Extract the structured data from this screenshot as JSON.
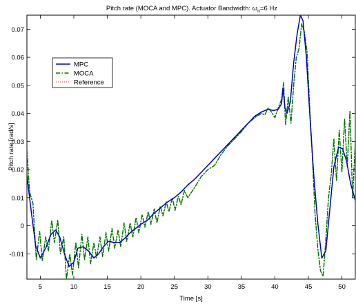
{
  "chart_data": {
    "type": "line",
    "title_parts": {
      "prefix": "Pitch rate (MOCA and MPC). Actuator Bandwidth: ",
      "omega": "ω",
      "subscript": "n",
      "suffix": "=6 Hz"
    },
    "xlabel": "Time [s]",
    "ylabel": "Pitch rate [rad/s]",
    "xlim": [
      3,
      52
    ],
    "ylim": [
      -0.019,
      0.075
    ],
    "xticks": [
      5,
      10,
      15,
      20,
      25,
      30,
      35,
      40,
      45,
      50
    ],
    "yticks": [
      -0.01,
      0,
      0.01,
      0.02,
      0.03,
      0.04,
      0.05,
      0.06,
      0.07
    ],
    "ytick_labels": [
      "-0.01",
      "0",
      "0.01",
      "0.02",
      "0.03",
      "0.04",
      "0.05",
      "0.06",
      "0.07"
    ],
    "xtick_labels": [
      "5",
      "10",
      "15",
      "20",
      "25",
      "30",
      "35",
      "40",
      "45",
      "50"
    ],
    "grid": false,
    "legend_placement": "upper-left",
    "series": [
      {
        "name": "MPC",
        "color": "#0000cc",
        "style": "solid",
        "x": [
          3,
          3.6,
          4.3,
          5,
          5.8,
          6.6,
          7.3,
          7.9,
          8.6,
          9.3,
          10,
          10.6,
          11.4,
          12.2,
          13,
          13.7,
          14.4,
          15.2,
          16,
          16.8,
          17.6,
          18.4,
          19.2,
          20,
          21,
          22,
          23,
          24,
          25,
          26,
          27,
          28,
          29,
          30,
          31,
          32,
          33,
          34,
          35,
          36,
          37,
          38,
          39,
          39.8,
          40.5,
          41,
          41.2,
          41.5,
          41.8,
          42.3,
          42.8,
          43.3,
          43.8,
          44.2,
          44.7,
          45.2,
          45.8,
          46.4,
          47,
          47.6,
          48.2,
          48.8,
          49.5,
          50.1,
          50.7,
          51.3,
          52
        ],
        "values": [
          0.018,
          0.006,
          -0.007,
          -0.0115,
          -0.008,
          -0.003,
          -0.0015,
          -0.004,
          -0.01,
          -0.0145,
          -0.013,
          -0.008,
          -0.0075,
          -0.009,
          -0.0115,
          -0.01,
          -0.0075,
          -0.0055,
          -0.006,
          -0.006,
          -0.0045,
          -0.0025,
          -0.001,
          0.0005,
          0.002,
          0.0045,
          0.0065,
          0.0085,
          0.01,
          0.012,
          0.0145,
          0.0165,
          0.019,
          0.0215,
          0.024,
          0.0265,
          0.029,
          0.0315,
          0.034,
          0.0365,
          0.039,
          0.0405,
          0.0415,
          0.041,
          0.0415,
          0.0435,
          0.049,
          0.042,
          0.04,
          0.044,
          0.058,
          0.068,
          0.075,
          0.073,
          0.06,
          0.04,
          0.018,
          0.001,
          -0.0115,
          -0.009,
          0.006,
          0.021,
          0.028,
          0.0275,
          0.023,
          0.015,
          0.009
        ]
      },
      {
        "name": "MOCA",
        "color": "#007700",
        "style": "dashdot",
        "x": [
          3,
          3.4,
          3.9,
          4.4,
          4.9,
          5.3,
          5.8,
          6.2,
          6.7,
          7.1,
          7.6,
          8,
          8.5,
          8.9,
          9.4,
          9.8,
          10.3,
          10.7,
          11.2,
          11.6,
          12.1,
          12.5,
          13,
          13.4,
          13.9,
          14.3,
          14.8,
          15.2,
          15.7,
          16.1,
          16.6,
          17,
          17.5,
          17.9,
          18.4,
          18.8,
          19.3,
          19.7,
          20.2,
          20.6,
          21.1,
          21.5,
          22,
          22.4,
          22.9,
          23.3,
          23.8,
          24.2,
          24.7,
          25.1,
          25.6,
          26,
          26.5,
          27,
          28,
          29,
          30,
          31,
          32,
          33,
          34,
          35,
          36,
          37,
          38,
          38.5,
          39,
          39.5,
          40,
          40.5,
          41,
          41.3,
          41.6,
          42,
          42.4,
          42.8,
          43.2,
          43.6,
          44,
          44.4,
          44.8,
          45.2,
          45.6,
          46,
          46.4,
          46.8,
          47.2,
          47.6,
          48,
          48.4,
          48.8,
          49.2,
          49.6,
          50,
          50.4,
          50.8,
          51.2,
          51.6,
          52
        ],
        "values": [
          0.027,
          0.012,
          0.008,
          -0.012,
          -0.002,
          -0.0125,
          -0.004,
          -0.009,
          0.002,
          -0.006,
          0.002,
          -0.01,
          -0.004,
          -0.019,
          -0.01,
          -0.0175,
          -0.006,
          -0.015,
          -0.003,
          -0.012,
          -0.004,
          -0.0135,
          -0.006,
          -0.0115,
          -0.004,
          -0.011,
          -0.0025,
          -0.009,
          -0.001,
          -0.008,
          -0.0015,
          -0.0075,
          0.001,
          -0.0055,
          0.001,
          -0.004,
          0.003,
          -0.0025,
          0.004,
          -0.0005,
          0.005,
          0.0005,
          0.006,
          0.001,
          0.007,
          0.0035,
          0.0085,
          0.005,
          0.01,
          0.0055,
          0.0105,
          0.0075,
          0.0125,
          0.01,
          0.0135,
          0.0175,
          0.02,
          0.0215,
          0.0255,
          0.0285,
          0.031,
          0.0335,
          0.0365,
          0.0385,
          0.04,
          0.0395,
          0.042,
          0.0405,
          0.0385,
          0.042,
          0.045,
          0.051,
          0.036,
          0.046,
          0.0365,
          0.05,
          0.06,
          0.063,
          0.072,
          0.069,
          0.062,
          0.042,
          0.024,
          0.004,
          -0.008,
          -0.016,
          -0.018,
          -0.005,
          0.01,
          0.018,
          0.031,
          0.016,
          0.034,
          0.019,
          0.038,
          0.021,
          0.041,
          0.01,
          0.03
        ]
      },
      {
        "name": "Reference",
        "color": "#cc3333",
        "style": "dotted",
        "x": [
          3,
          3.6,
          4.3,
          5,
          5.8,
          6.6,
          7.3,
          7.9,
          8.6,
          9.3,
          10,
          10.6,
          11.4,
          12.2,
          13,
          13.7,
          14.4,
          15.2,
          16,
          16.8,
          17.6,
          18.4,
          19.2,
          20,
          21,
          22,
          23,
          24,
          25,
          26,
          27,
          28,
          29,
          30,
          31,
          32,
          33,
          34,
          35,
          36,
          37,
          38,
          39,
          39.8,
          40.5,
          41,
          41.2,
          41.5,
          41.8,
          42.3,
          42.8,
          43.3,
          43.8,
          44.2,
          44.7,
          45.2,
          45.8,
          46.4,
          47,
          47.6,
          48.2,
          48.8,
          49.5,
          50.1,
          50.7,
          51.3,
          52
        ],
        "values": [
          0.0175,
          0.0055,
          -0.0072,
          -0.0113,
          -0.0079,
          -0.0031,
          -0.0016,
          -0.0041,
          -0.0099,
          -0.0143,
          -0.0129,
          -0.0079,
          -0.0074,
          -0.0089,
          -0.0113,
          -0.0099,
          -0.0074,
          -0.0054,
          -0.0059,
          -0.0059,
          -0.0044,
          -0.0024,
          -0.0009,
          0.0006,
          0.0021,
          0.0046,
          0.0066,
          0.0086,
          0.0101,
          0.0121,
          0.0146,
          0.0166,
          0.0191,
          0.0216,
          0.0241,
          0.0266,
          0.0291,
          0.0316,
          0.0341,
          0.0366,
          0.0391,
          0.0406,
          0.0416,
          0.0411,
          0.0416,
          0.0436,
          0.0488,
          0.0421,
          0.0401,
          0.0441,
          0.0578,
          0.0678,
          0.0748,
          0.0728,
          0.0598,
          0.0398,
          0.0178,
          0.0008,
          -0.0113,
          -0.0089,
          0.0059,
          0.0209,
          0.0279,
          0.0274,
          0.0229,
          0.0149,
          0.0089
        ]
      }
    ]
  }
}
